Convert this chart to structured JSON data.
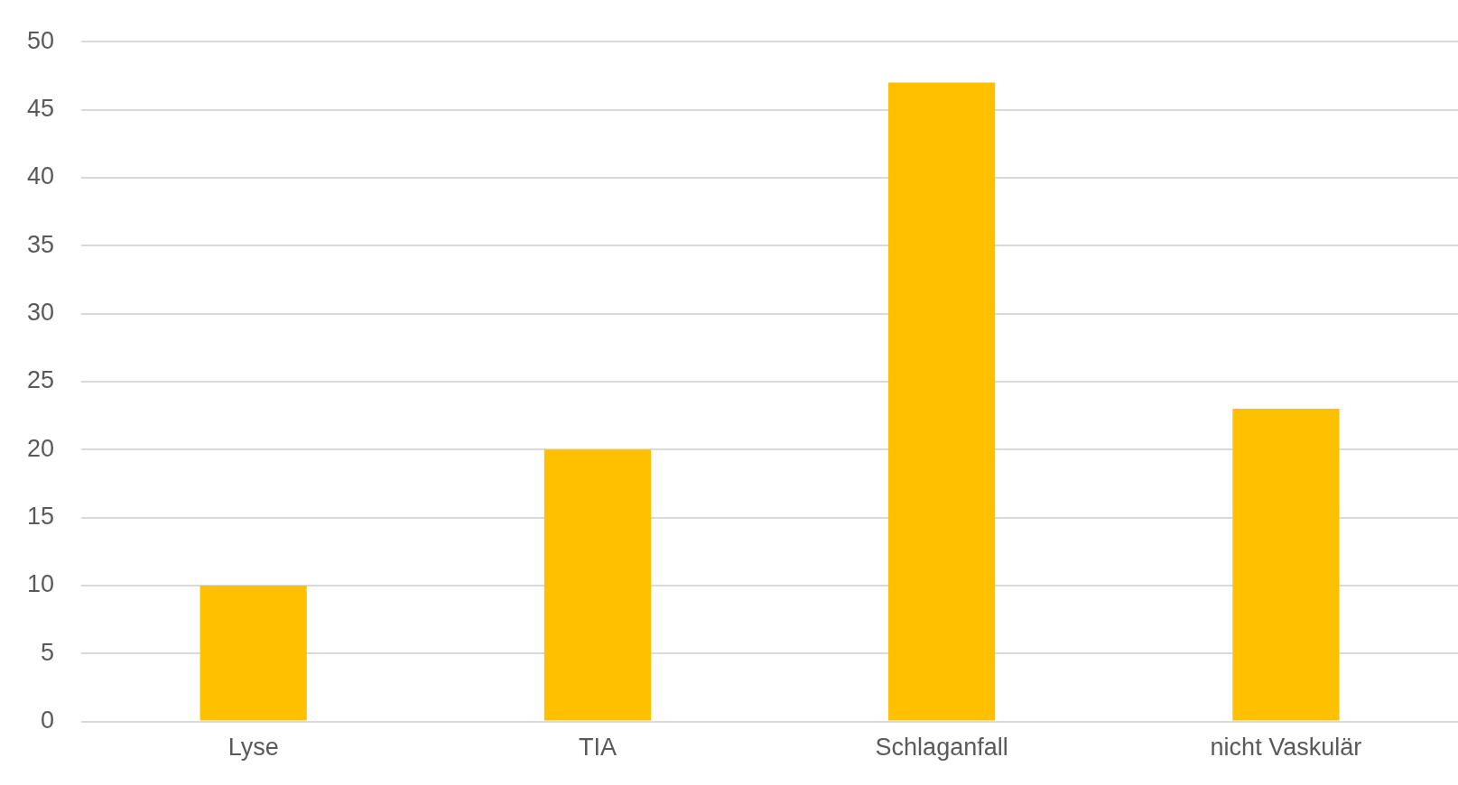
{
  "chart_data": {
    "type": "bar",
    "categories": [
      "Lyse",
      "TIA",
      "Schlaganfall",
      "nicht Vaskulär"
    ],
    "values": [
      10,
      20,
      47,
      23
    ],
    "color": "#ffc000",
    "ylim": [
      0,
      50
    ],
    "yticks": [
      0,
      5,
      10,
      15,
      20,
      25,
      30,
      35,
      40,
      45,
      50
    ],
    "grid": "y",
    "legend": false
  }
}
